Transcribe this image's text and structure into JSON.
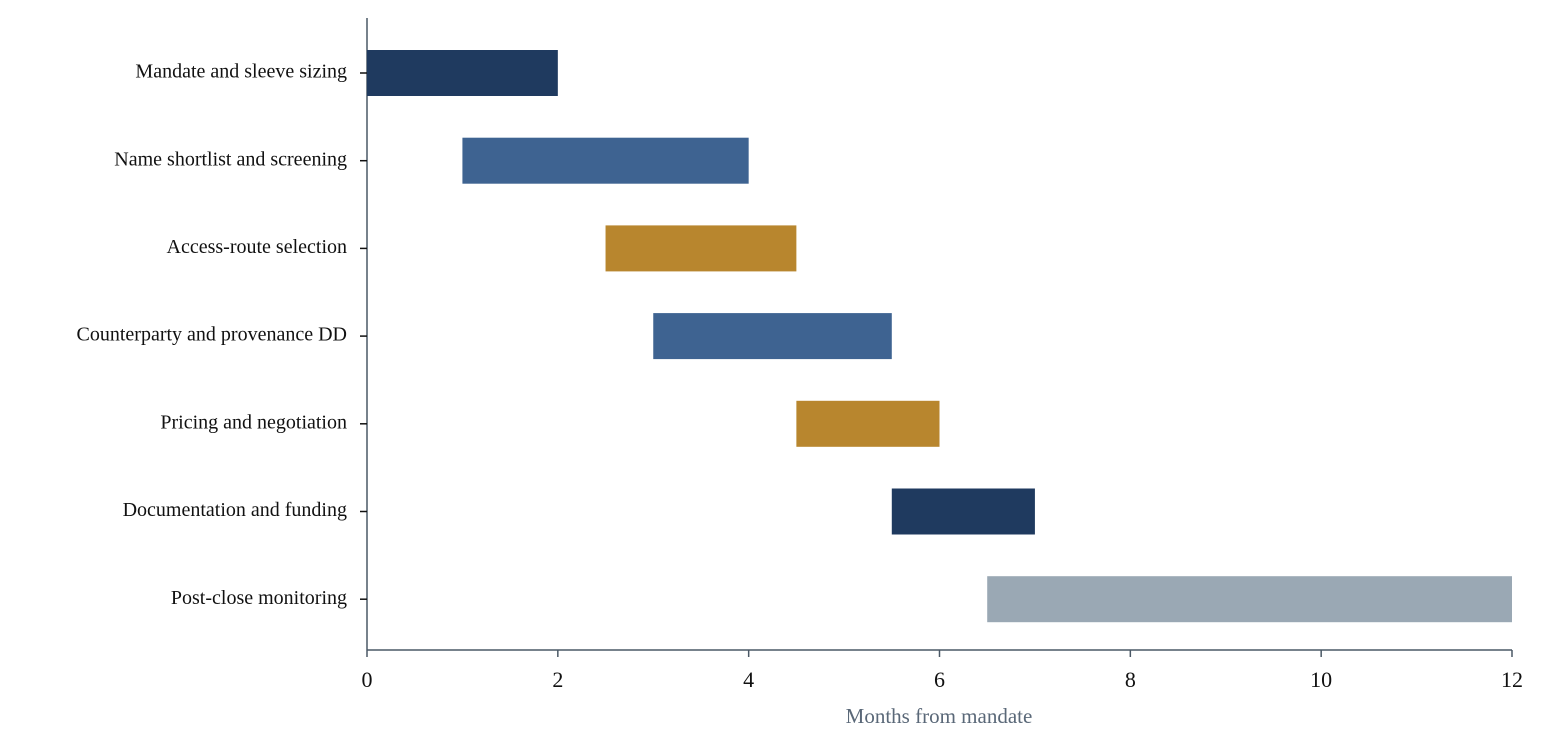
{
  "chart_data": {
    "type": "gantt",
    "categories": [
      "Mandate and sleeve sizing",
      "Name shortlist and screening",
      "Access-route selection",
      "Counterparty and provenance DD",
      "Pricing and negotiation",
      "Documentation and funding",
      "Post-close monitoring"
    ],
    "starts": [
      0,
      1,
      2.5,
      3,
      4.5,
      5.5,
      6.5
    ],
    "ends": [
      2,
      4,
      4.5,
      5.5,
      6,
      7,
      12
    ],
    "colors": [
      "#1f3a5f",
      "#3e6391",
      "#b8862e",
      "#3e6391",
      "#b8862e",
      "#1f3a5f",
      "#9aa8b4"
    ],
    "xlabel": "Months from mandate",
    "xlim": [
      0,
      12
    ],
    "xticks": [
      0,
      2,
      4,
      6,
      8,
      10,
      12
    ]
  }
}
